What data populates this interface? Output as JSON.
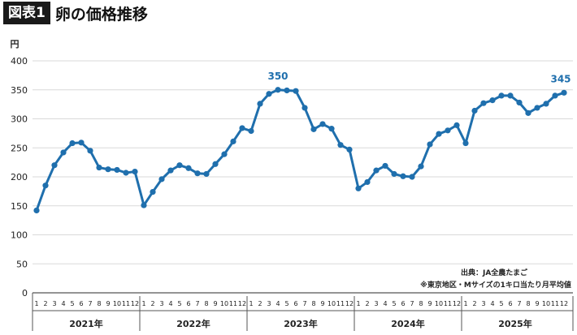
{
  "header": {
    "badge": "図表1",
    "title": "卵の価格推移"
  },
  "colors": {
    "series": "#1f6fad",
    "grid": "#d9d9d9",
    "axis": "#555555"
  },
  "source": {
    "line1": "出典：JA全農たまご",
    "line2": "※東京地区・Mサイズの1キロ当たり月平均値"
  },
  "chart_data": {
    "type": "line",
    "ylabel": "円",
    "ylim": [
      0,
      400
    ],
    "yticks": [
      "0",
      "50",
      "100",
      "150",
      "200",
      "250",
      "300",
      "350",
      "400"
    ],
    "grid": true,
    "month_labels": [
      "1",
      "2",
      "3",
      "4",
      "5",
      "6",
      "7",
      "8",
      "9",
      "10",
      "11",
      "12"
    ],
    "years": [
      "2021年",
      "2022年",
      "2023年",
      "2024年",
      "2025年"
    ],
    "series": [
      {
        "values": [
          142,
          185,
          220,
          242,
          258,
          259,
          245,
          216,
          213,
          212,
          207,
          209,
          151,
          174,
          196,
          211,
          220,
          215,
          206,
          205,
          222,
          239,
          261,
          284,
          279,
          326,
          343,
          350,
          349,
          348,
          319,
          282,
          291,
          283,
          255,
          247,
          180,
          191,
          211,
          219,
          205,
          201,
          200,
          218,
          256,
          274,
          280,
          289,
          258,
          314,
          327,
          332,
          340,
          340,
          328,
          310,
          319,
          326,
          340,
          345
        ]
      }
    ],
    "annotations": [
      {
        "index": 27,
        "text": "350"
      },
      {
        "index": 59,
        "text": "345"
      }
    ]
  }
}
